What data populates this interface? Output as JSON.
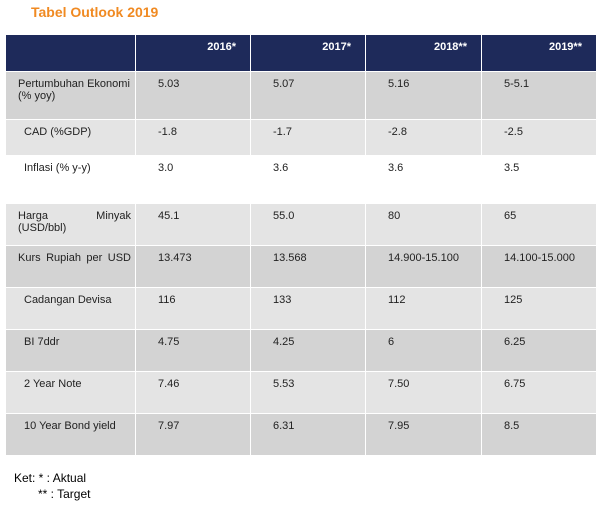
{
  "title": "Tabel Outlook 2019",
  "table": {
    "headers": [
      "",
      "2016*",
      "2017*",
      "2018**",
      "2019**"
    ],
    "rows": [
      {
        "label": "Pertumbuhan Ekonomi (% yoy)",
        "values": [
          "5.03",
          "5.07",
          "5.16",
          "5-5.1"
        ]
      },
      {
        "label": "CAD (%GDP)",
        "values": [
          "-1.8",
          "-1.7",
          "-2.8",
          "-2.5"
        ]
      },
      {
        "label": "Inflasi (% y-y)",
        "values": [
          "3.0",
          "3.6",
          "3.6",
          "3.5"
        ]
      },
      {
        "label": "Harga Minyak (USD/bbl)",
        "values": [
          "45.1",
          "55.0",
          "80",
          "65"
        ]
      },
      {
        "label": "Kurs Rupiah per USD",
        "values": [
          "13.473",
          "13.568",
          "14.900-15.100",
          "14.100-15.000"
        ]
      },
      {
        "label": "Cadangan Devisa",
        "values": [
          "116",
          "133",
          "112",
          "125"
        ]
      },
      {
        "label": "BI 7ddr",
        "values": [
          "4.75",
          "4.25",
          "6",
          "6.25"
        ]
      },
      {
        "label": "2 Year Note",
        "values": [
          "7.46",
          "5.53",
          "7.50",
          "6.75"
        ]
      },
      {
        "label": "10 Year Bond yield",
        "values": [
          "7.97",
          "6.31",
          "7.95",
          "8.5"
        ]
      }
    ]
  },
  "notes": [
    "Ket: * : Aktual",
    "** : Target"
  ],
  "colors": {
    "title": "#f08a22",
    "header_bg": "#1e2a5a"
  }
}
